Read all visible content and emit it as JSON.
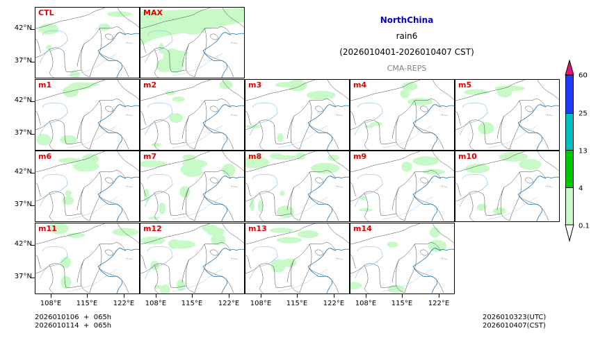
{
  "header": {
    "region": "NorthChina",
    "variable": "rain6",
    "period": "(2026010401-2026010407 CST)",
    "model": "CMA-REPS",
    "region_color": "#0000cc",
    "model_color": "#808080"
  },
  "panels": [
    {
      "label": "CTL",
      "row": 0,
      "col": 0,
      "coverage": "light"
    },
    {
      "label": "MAX",
      "row": 0,
      "col": 1,
      "coverage": "heavy"
    },
    {
      "label": "m1",
      "row": 1,
      "col": 0,
      "coverage": "light"
    },
    {
      "label": "m2",
      "row": 1,
      "col": 1,
      "coverage": "light"
    },
    {
      "label": "m3",
      "row": 1,
      "col": 2,
      "coverage": "light"
    },
    {
      "label": "m4",
      "row": 1,
      "col": 3,
      "coverage": "light"
    },
    {
      "label": "m5",
      "row": 1,
      "col": 4,
      "coverage": "light"
    },
    {
      "label": "m6",
      "row": 2,
      "col": 0,
      "coverage": "light"
    },
    {
      "label": "m7",
      "row": 2,
      "col": 1,
      "coverage": "medium"
    },
    {
      "label": "m8",
      "row": 2,
      "col": 2,
      "coverage": "medium"
    },
    {
      "label": "m9",
      "row": 2,
      "col": 3,
      "coverage": "light"
    },
    {
      "label": "m10",
      "row": 2,
      "col": 4,
      "coverage": "light"
    },
    {
      "label": "m11",
      "row": 3,
      "col": 0,
      "coverage": "light"
    },
    {
      "label": "m12",
      "row": 3,
      "col": 1,
      "coverage": "medium"
    },
    {
      "label": "m13",
      "row": 3,
      "col": 2,
      "coverage": "light"
    },
    {
      "label": "m14",
      "row": 3,
      "col": 3,
      "coverage": "light"
    }
  ],
  "axes": {
    "y_ticks": [
      "42°N",
      "37°N"
    ],
    "x_ticks": [
      "108°E",
      "115°E",
      "122°E"
    ]
  },
  "colorbar": {
    "levels": [
      "0.1",
      "4",
      "13",
      "25",
      "60"
    ],
    "colors": [
      "#c8fac8",
      "#00c800",
      "#00c0c0",
      "#1e3cff",
      "#e6147a"
    ],
    "under_color": "#ffffff",
    "over_color": "#e6147a"
  },
  "footer": {
    "init_line1": "2026010106  +  065h",
    "init_line2": "2026010114  +  065h",
    "valid_utc": "2026010323(UTC)",
    "valid_cst": "2026010407(CST)"
  }
}
